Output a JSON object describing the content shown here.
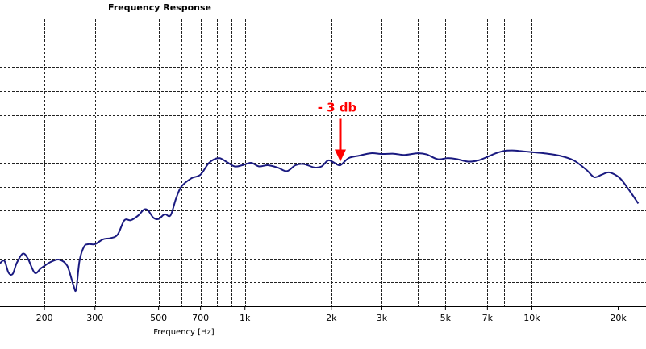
{
  "chart_data": {
    "type": "line",
    "title": "Frequency Response",
    "xlabel": "Frequency [Hz]",
    "ylabel": "",
    "x_scale": "log",
    "xlim": [
      140,
      25000
    ],
    "ylim": [
      0,
      12
    ],
    "grid": true,
    "x_gridlines": [
      200,
      300,
      400,
      500,
      600,
      700,
      800,
      900,
      1000,
      2000,
      3000,
      4000,
      5000,
      6000,
      7000,
      8000,
      9000,
      10000,
      20000
    ],
    "y_gridlines": [
      1,
      2,
      3,
      4,
      5,
      6,
      7,
      8,
      9,
      10,
      11
    ],
    "x_ticks": [
      {
        "value": 200,
        "label": "200"
      },
      {
        "value": 300,
        "label": "300"
      },
      {
        "value": 500,
        "label": "500"
      },
      {
        "value": 700,
        "label": "700"
      },
      {
        "value": 1000,
        "label": "1k"
      },
      {
        "value": 2000,
        "label": "2k"
      },
      {
        "value": 3000,
        "label": "3k"
      },
      {
        "value": 5000,
        "label": "5k"
      },
      {
        "value": 7000,
        "label": "7k"
      },
      {
        "value": 10000,
        "label": "10k"
      },
      {
        "value": 20000,
        "label": "20k"
      }
    ],
    "series": [
      {
        "color": "#1a1a80",
        "points": [
          [
            140,
            1.8
          ],
          [
            145,
            1.9
          ],
          [
            150,
            1.4
          ],
          [
            155,
            1.35
          ],
          [
            160,
            1.8
          ],
          [
            168,
            2.2
          ],
          [
            175,
            2.0
          ],
          [
            185,
            1.4
          ],
          [
            195,
            1.6
          ],
          [
            210,
            1.85
          ],
          [
            225,
            1.95
          ],
          [
            240,
            1.7
          ],
          [
            252,
            0.9
          ],
          [
            258,
            0.7
          ],
          [
            265,
            1.9
          ],
          [
            275,
            2.5
          ],
          [
            285,
            2.6
          ],
          [
            300,
            2.6
          ],
          [
            320,
            2.8
          ],
          [
            340,
            2.85
          ],
          [
            360,
            3.0
          ],
          [
            380,
            3.6
          ],
          [
            400,
            3.6
          ],
          [
            425,
            3.8
          ],
          [
            445,
            4.05
          ],
          [
            460,
            4.0
          ],
          [
            480,
            3.7
          ],
          [
            500,
            3.65
          ],
          [
            525,
            3.85
          ],
          [
            550,
            3.8
          ],
          [
            575,
            4.5
          ],
          [
            600,
            5.0
          ],
          [
            650,
            5.35
          ],
          [
            700,
            5.5
          ],
          [
            750,
            6.0
          ],
          [
            810,
            6.2
          ],
          [
            860,
            6.05
          ],
          [
            920,
            5.85
          ],
          [
            980,
            5.9
          ],
          [
            1050,
            6.0
          ],
          [
            1120,
            5.85
          ],
          [
            1200,
            5.9
          ],
          [
            1300,
            5.8
          ],
          [
            1400,
            5.65
          ],
          [
            1500,
            5.9
          ],
          [
            1600,
            5.95
          ],
          [
            1750,
            5.8
          ],
          [
            1850,
            5.85
          ],
          [
            1950,
            6.1
          ],
          [
            2050,
            6.0
          ],
          [
            2150,
            5.9
          ],
          [
            2300,
            6.2
          ],
          [
            2500,
            6.3
          ],
          [
            2750,
            6.4
          ],
          [
            3000,
            6.37
          ],
          [
            3300,
            6.38
          ],
          [
            3600,
            6.33
          ],
          [
            4000,
            6.4
          ],
          [
            4300,
            6.35
          ],
          [
            4700,
            6.15
          ],
          [
            5100,
            6.2
          ],
          [
            5500,
            6.15
          ],
          [
            6000,
            6.05
          ],
          [
            6500,
            6.1
          ],
          [
            7000,
            6.25
          ],
          [
            7500,
            6.4
          ],
          [
            8000,
            6.5
          ],
          [
            8500,
            6.52
          ],
          [
            9000,
            6.5
          ],
          [
            10000,
            6.45
          ],
          [
            11000,
            6.4
          ],
          [
            12500,
            6.3
          ],
          [
            14000,
            6.1
          ],
          [
            15500,
            5.7
          ],
          [
            16500,
            5.4
          ],
          [
            17500,
            5.5
          ],
          [
            18500,
            5.6
          ],
          [
            19500,
            5.5
          ],
          [
            20500,
            5.3
          ],
          [
            22000,
            4.8
          ],
          [
            23500,
            4.3
          ]
        ]
      }
    ],
    "annotations": [
      {
        "text": "- 3 db",
        "color": "#ff0000",
        "x": 2150,
        "y": 5.95
      }
    ]
  }
}
